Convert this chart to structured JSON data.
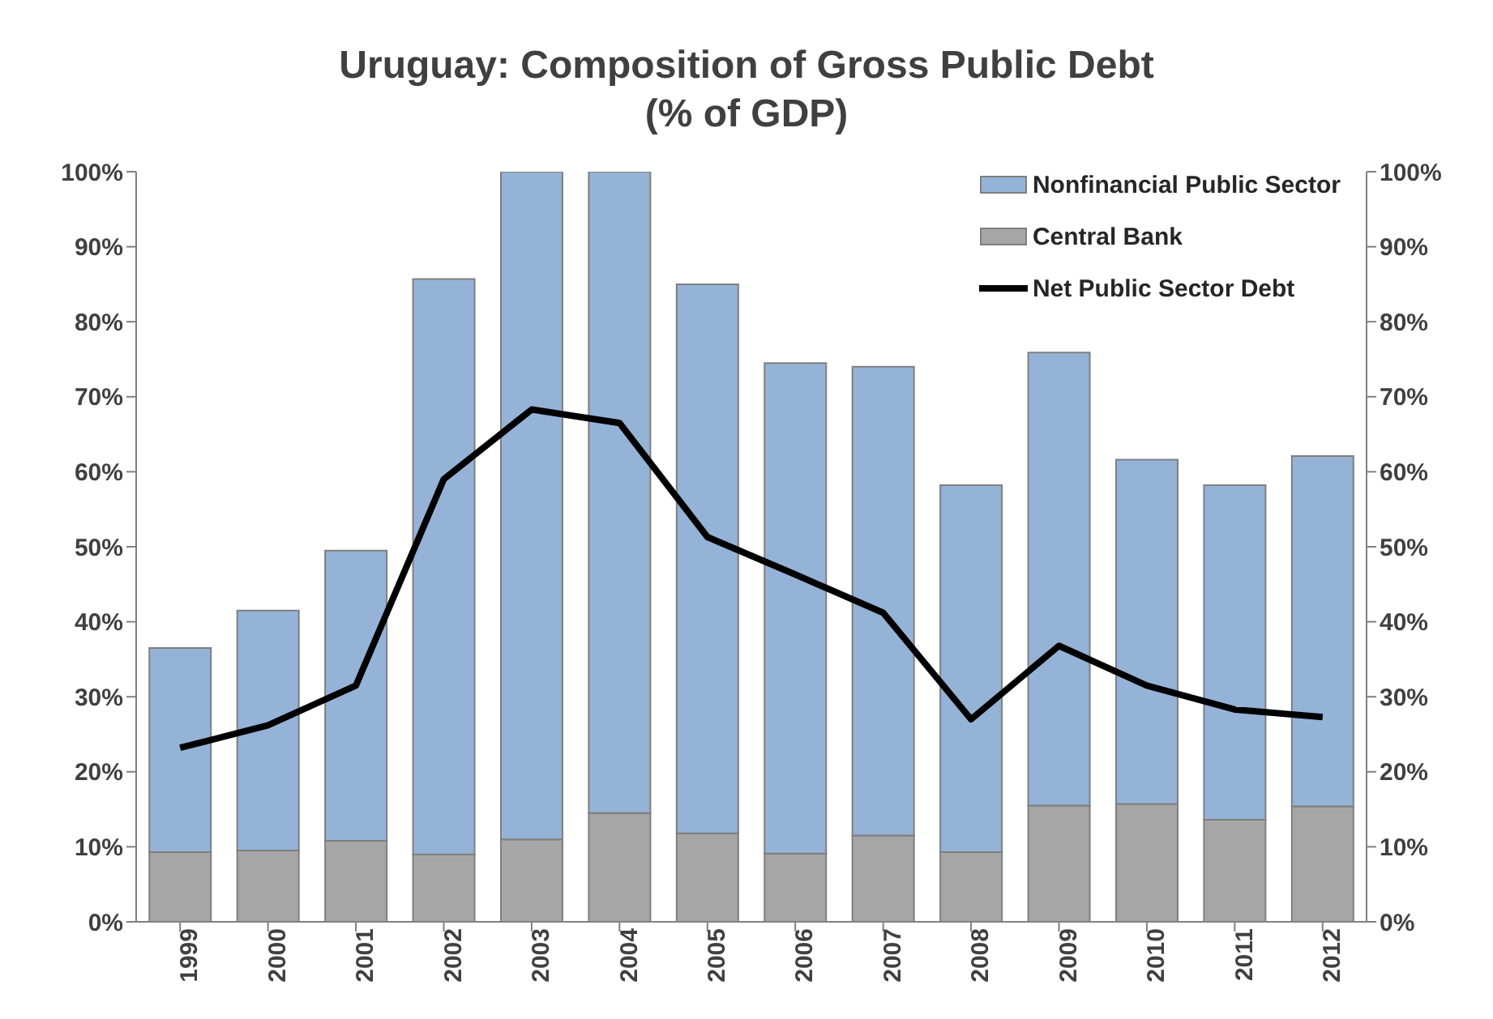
{
  "chart_data": {
    "type": "bar",
    "title": "Uruguay: Composition of Gross Public Debt",
    "subtitle": "(% of GDP)",
    "stacked": true,
    "categories": [
      "1999",
      "2000",
      "2001",
      "2002",
      "2003",
      "2004",
      "2005",
      "2006",
      "2007",
      "2008",
      "2009",
      "2010",
      "2011",
      "2012"
    ],
    "series": [
      {
        "name": "Central Bank",
        "color": "#a6a6a6",
        "values": [
          9.3,
          9.5,
          10.8,
          9,
          11,
          14.5,
          11.8,
          9.1,
          11.5,
          9.3,
          15.5,
          15.7,
          13.6,
          15.4
        ]
      },
      {
        "name": "Nonfinancial Public Sector",
        "color": "#95b3d7",
        "values": [
          27.2,
          32,
          38.7,
          76.7,
          89,
          85.5,
          73.2,
          65.4,
          62.5,
          48.9,
          60.4,
          45.9,
          44.6,
          46.7
        ]
      },
      {
        "name": "Net Public Sector Debt",
        "type": "line",
        "color": "#000000",
        "values": [
          23.2,
          26.2,
          31.5,
          59,
          68.3,
          66.5,
          51.3,
          46.3,
          41.2,
          27,
          36.8,
          31.5,
          28.3,
          27.3
        ]
      }
    ],
    "ylim": [
      0,
      100
    ],
    "yticks": [
      {
        "value": 0,
        "label": "0%"
      },
      {
        "value": 10,
        "label": "10%"
      },
      {
        "value": 20,
        "label": "20%"
      },
      {
        "value": 30,
        "label": "30%"
      },
      {
        "value": 40,
        "label": "40%"
      },
      {
        "value": 50,
        "label": "50%"
      },
      {
        "value": 60,
        "label": "60%"
      },
      {
        "value": 70,
        "label": "70%"
      },
      {
        "value": 80,
        "label": "80%"
      },
      {
        "value": 90,
        "label": "90%"
      },
      {
        "value": 100,
        "label": "100%"
      }
    ],
    "y2lim": [
      0,
      100
    ],
    "y2ticks": [
      {
        "value": 0,
        "label": "0%"
      },
      {
        "value": 10,
        "label": "10%"
      },
      {
        "value": 20,
        "label": "20%"
      },
      {
        "value": 30,
        "label": "30%"
      },
      {
        "value": 40,
        "label": "40%"
      },
      {
        "value": 50,
        "label": "50%"
      },
      {
        "value": 60,
        "label": "60%"
      },
      {
        "value": 70,
        "label": "70%"
      },
      {
        "value": 80,
        "label": "80%"
      },
      {
        "value": 90,
        "label": "90%"
      },
      {
        "value": 100,
        "label": "100%"
      }
    ],
    "legend": "top right",
    "marker": "none",
    "line_style": "solid"
  }
}
